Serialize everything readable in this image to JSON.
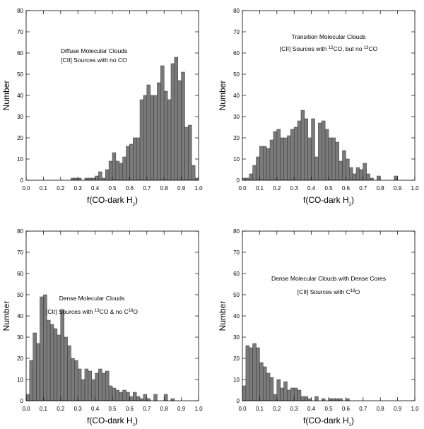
{
  "chart_data": [
    {
      "type": "histogram",
      "color": "#7a7a7a",
      "annotation": [
        [
          "Diffuse Molecular Clouds"
        ],
        [
          "[CII] Sources with no CO"
        ]
      ],
      "xlabel": [
        "f(CO-dark H",
        "2",
        ")"
      ],
      "ylabel": "Number",
      "bins": [
        0,
        0.02,
        0.04,
        0.06,
        0.08,
        0.1,
        0.12,
        0.14,
        0.16,
        0.18,
        0.2,
        0.22,
        0.24,
        0.26,
        0.28,
        0.3,
        0.32,
        0.34,
        0.36,
        0.38,
        0.4,
        0.42,
        0.44,
        0.46,
        0.48,
        0.5,
        0.52,
        0.54,
        0.56,
        0.58,
        0.6,
        0.62,
        0.64,
        0.66,
        0.68,
        0.7,
        0.72,
        0.74,
        0.76,
        0.78,
        0.8,
        0.82,
        0.84,
        0.86,
        0.88,
        0.9,
        0.92,
        0.94,
        0.96,
        0.98,
        1
      ],
      "counts": [
        0,
        0,
        0,
        0,
        0,
        0,
        0,
        0,
        0,
        0,
        0,
        0,
        0,
        1,
        1,
        1,
        0,
        1,
        1,
        1,
        2,
        4,
        1,
        5,
        9,
        13,
        9,
        8,
        11,
        16,
        17,
        20,
        20,
        38,
        40,
        45,
        40,
        40,
        46,
        54,
        42,
        38,
        55,
        58,
        47,
        51,
        25,
        26,
        7,
        1
      ],
      "xlim": [
        0,
        1
      ],
      "ylim": [
        0,
        80
      ],
      "xticks": [
        {
          "value": 0,
          "label": "0.0"
        },
        0.1,
        0.2,
        0.3,
        0.4,
        0.5,
        0.6,
        0.7,
        0.8,
        0.9,
        {
          "value": 1,
          "label": "1.0"
        }
      ],
      "yticks": [
        0,
        10,
        20,
        30,
        40,
        50,
        60,
        70,
        80
      ]
    },
    {
      "type": "histogram",
      "color": "#7a7a7a",
      "annotation": [
        [
          "Transition Molecular Clouds"
        ],
        [
          "[CII] Sources with ",
          "12",
          "CO, but no ",
          "13",
          "CO"
        ]
      ],
      "xlabel": [
        "f(CO-dark H",
        "2",
        ")"
      ],
      "ylabel": "Number",
      "bins": [
        0,
        0.02,
        0.04,
        0.06,
        0.08,
        0.1,
        0.12,
        0.14,
        0.16,
        0.18,
        0.2,
        0.22,
        0.24,
        0.26,
        0.28,
        0.3,
        0.32,
        0.34,
        0.36,
        0.38,
        0.4,
        0.42,
        0.44,
        0.46,
        0.48,
        0.5,
        0.52,
        0.54,
        0.56,
        0.58,
        0.6,
        0.62,
        0.64,
        0.66,
        0.68,
        0.7,
        0.72,
        0.74,
        0.76,
        0.78,
        0.8,
        0.82,
        0.84,
        0.86,
        0.88,
        0.9,
        0.92,
        0.94,
        0.96,
        0.98,
        1
      ],
      "counts": [
        1,
        1,
        3,
        7,
        11,
        16,
        16,
        15,
        19,
        23,
        24,
        20,
        20,
        21,
        24,
        25,
        28,
        33,
        29,
        20,
        29,
        11,
        27,
        28,
        24,
        20,
        20,
        18,
        9,
        14,
        10,
        6,
        3,
        6,
        5,
        8,
        3,
        1,
        0,
        2,
        0,
        0,
        0,
        0,
        2,
        0,
        0,
        0,
        0,
        0
      ],
      "xlim": [
        0,
        1
      ],
      "ylim": [
        0,
        80
      ],
      "xticks": [
        {
          "value": 0,
          "label": "0.0"
        },
        0.1,
        0.2,
        0.3,
        0.4,
        0.5,
        0.6,
        0.7,
        0.8,
        0.9,
        {
          "value": 1,
          "label": "1.0"
        }
      ],
      "yticks": [
        0,
        10,
        20,
        30,
        40,
        50,
        60,
        70,
        80
      ]
    },
    {
      "type": "histogram",
      "color": "#7a7a7a",
      "annotation": [
        [
          "Dense Molecular Clouds"
        ],
        [
          "[CII] Sources with ",
          "13",
          "CO & no C",
          "18",
          "O"
        ]
      ],
      "xlabel": [
        "f(CO-dark H",
        "2",
        ")"
      ],
      "ylabel": "Number",
      "bins": [
        0,
        0.02,
        0.04,
        0.06,
        0.08,
        0.1,
        0.12,
        0.14,
        0.16,
        0.18,
        0.2,
        0.22,
        0.24,
        0.26,
        0.28,
        0.3,
        0.32,
        0.34,
        0.36,
        0.38,
        0.4,
        0.42,
        0.44,
        0.46,
        0.48,
        0.5,
        0.52,
        0.54,
        0.56,
        0.58,
        0.6,
        0.62,
        0.64,
        0.66,
        0.68,
        0.7,
        0.72,
        0.74,
        0.76,
        0.78,
        0.8,
        0.82,
        0.84,
        0.86,
        0.88,
        0.9,
        0.92,
        0.94,
        0.96,
        0.98,
        1
      ],
      "counts": [
        3,
        19,
        32,
        27,
        49,
        50,
        38,
        36,
        34,
        31,
        43,
        30,
        26,
        20,
        19,
        15,
        10,
        15,
        14,
        10,
        13,
        15,
        13,
        14,
        7,
        6,
        5,
        4,
        5,
        4,
        2,
        4,
        2,
        1,
        3,
        1,
        0,
        3,
        0,
        0,
        3,
        0,
        1,
        0,
        0,
        0,
        0,
        0,
        0,
        0
      ],
      "xlim": [
        0,
        1
      ],
      "ylim": [
        0,
        80
      ],
      "xticks": [
        {
          "value": 0,
          "label": "0.0"
        },
        0.1,
        0.2,
        0.3,
        0.4,
        0.5,
        0.6,
        0.7,
        0.8,
        0.9,
        {
          "value": 1,
          "label": "1.0"
        }
      ],
      "yticks": [
        0,
        10,
        20,
        30,
        40,
        50,
        60,
        70,
        80
      ]
    },
    {
      "type": "histogram",
      "color": "#7a7a7a",
      "annotation": [
        [
          "Dense Molecular Clouds with Dense Cores"
        ],
        [
          "[CII] Sources with C",
          "18",
          "O"
        ]
      ],
      "xlabel": [
        "f(CO-dark H",
        "2",
        ")"
      ],
      "ylabel": "Number",
      "bins": [
        0,
        0.02,
        0.04,
        0.06,
        0.08,
        0.1,
        0.12,
        0.14,
        0.16,
        0.18,
        0.2,
        0.22,
        0.24,
        0.26,
        0.28,
        0.3,
        0.32,
        0.34,
        0.36,
        0.38,
        0.4,
        0.42,
        0.44,
        0.46,
        0.48,
        0.5,
        0.52,
        0.54,
        0.56,
        0.58,
        0.6,
        0.62,
        0.64,
        0.66,
        0.68,
        0.7,
        0.72,
        0.74,
        0.76,
        0.78,
        0.8,
        0.82,
        0.84,
        0.86,
        0.88,
        0.9,
        0.92,
        0.94,
        0.96,
        0.98,
        1
      ],
      "counts": [
        7,
        26,
        25,
        27,
        25,
        18,
        16,
        13,
        11,
        3,
        10,
        6,
        9,
        5,
        6,
        6,
        5,
        2,
        2,
        1,
        0,
        2,
        0,
        1,
        0,
        1,
        1,
        1,
        1,
        0,
        1,
        0,
        0,
        0,
        0,
        0,
        0,
        0,
        0,
        0,
        0,
        0,
        0,
        0,
        0,
        0,
        0,
        0,
        0,
        0
      ],
      "xlim": [
        0,
        1
      ],
      "ylim": [
        0,
        80
      ],
      "xticks": [
        {
          "value": 0,
          "label": "0.0"
        },
        0.1,
        0.2,
        0.3,
        0.4,
        0.5,
        0.6,
        0.7,
        0.8,
        0.9,
        {
          "value": 1,
          "label": "1.0"
        }
      ],
      "yticks": [
        0,
        10,
        20,
        30,
        40,
        50,
        60,
        70,
        80
      ]
    }
  ]
}
